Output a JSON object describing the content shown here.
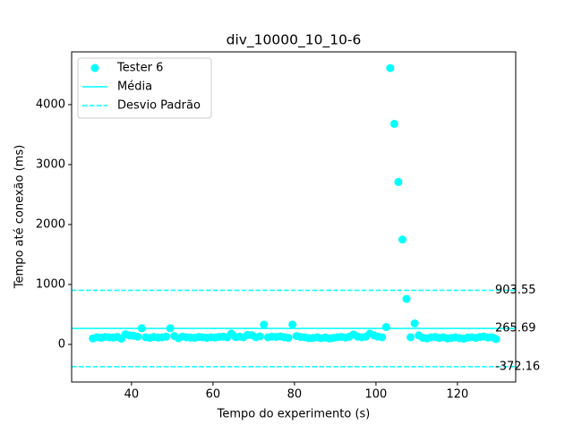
{
  "chart_data": {
    "type": "scatter",
    "title": "div_10000_10_10-6",
    "xlabel": "Tempo do experimento (s)",
    "ylabel": "Tempo até conexão (ms)",
    "xlim": [
      25.3,
      134.3
    ],
    "ylim": [
      -627,
      4880
    ],
    "xticks": [
      40,
      60,
      80,
      100,
      120
    ],
    "yticks": [
      0,
      1000,
      2000,
      3000,
      4000
    ],
    "legend": "upper left",
    "series": [
      {
        "name": "Tester 6",
        "color": "#00ffff",
        "x": [
          30.5,
          31.5,
          32.5,
          33.5,
          34.5,
          35.5,
          36.5,
          37.5,
          38.5,
          39.5,
          40.5,
          41.5,
          42.5,
          43.5,
          44.5,
          45.5,
          46.5,
          47.5,
          48.5,
          49.5,
          50.5,
          51.5,
          52.5,
          53.5,
          54.5,
          55.5,
          56.5,
          57.5,
          58.5,
          59.5,
          60.5,
          61.5,
          62.5,
          63.5,
          64.5,
          65.5,
          66.5,
          67.5,
          68.5,
          69.5,
          70.5,
          71.5,
          72.5,
          73.5,
          74.5,
          75.5,
          76.5,
          77.5,
          78.5,
          79.5,
          80.5,
          81.5,
          82.5,
          83.5,
          84.5,
          85.5,
          86.5,
          87.5,
          88.5,
          89.5,
          90.5,
          91.5,
          92.5,
          93.5,
          94.5,
          95.5,
          96.5,
          97.5,
          98.5,
          99.5,
          100.5,
          101.5,
          102.5,
          103.5,
          104.5,
          105.5,
          106.5,
          107.5,
          108.5,
          109.5,
          110.5,
          111.5,
          112.5,
          113.5,
          114.5,
          115.5,
          116.5,
          117.5,
          118.5,
          119.5,
          120.5,
          121.5,
          122.5,
          123.5,
          124.5,
          125.5,
          126.5,
          127.5,
          128.5,
          129.5
        ],
        "values": [
          100,
          120,
          110,
          125,
          120,
          115,
          125,
          95,
          170,
          150,
          145,
          130,
          270,
          120,
          110,
          125,
          115,
          120,
          130,
          270,
          140,
          105,
          130,
          120,
          115,
          110,
          125,
          120,
          110,
          120,
          115,
          125,
          130,
          120,
          180,
          125,
          130,
          120,
          160,
          155,
          120,
          135,
          330,
          120,
          130,
          125,
          135,
          120,
          110,
          330,
          140,
          125,
          120,
          105,
          110,
          120,
          105,
          115,
          100,
          110,
          120,
          125,
          115,
          130,
          165,
          130,
          120,
          130,
          180,
          150,
          130,
          120,
          290,
          4610,
          3680,
          2710,
          1750,
          760,
          120,
          350,
          150,
          110,
          100,
          120,
          125,
          110,
          120,
          100,
          110,
          120,
          105,
          95,
          115,
          120,
          110,
          125,
          130,
          115,
          120,
          90
        ]
      }
    ],
    "mean": {
      "name": "Média",
      "color": "#00ffff",
      "value": 265.69
    },
    "std": {
      "name": "Desvio Padrão",
      "color": "#00ffff",
      "values": [
        903.55,
        -372.16
      ]
    }
  }
}
